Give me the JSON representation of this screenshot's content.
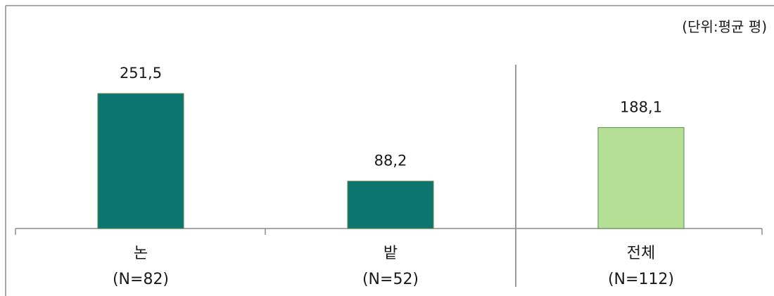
{
  "chart_data": {
    "type": "bar",
    "unit_note": "(단위:평균 평)",
    "categories": [
      {
        "name": "논",
        "n_label": "(N=82)"
      },
      {
        "name": "밭",
        "n_label": "(N=52)"
      },
      {
        "name": "전체",
        "n_label": "(N=112)"
      }
    ],
    "values": [
      251.5,
      88.2,
      188.1
    ],
    "value_labels": [
      "251,5",
      "88,2",
      "188,1"
    ],
    "colors": [
      "#0d7570",
      "#0d7570",
      "#b4df94"
    ],
    "border_color": "#5a8a4a",
    "grid": false,
    "legend": "none"
  }
}
